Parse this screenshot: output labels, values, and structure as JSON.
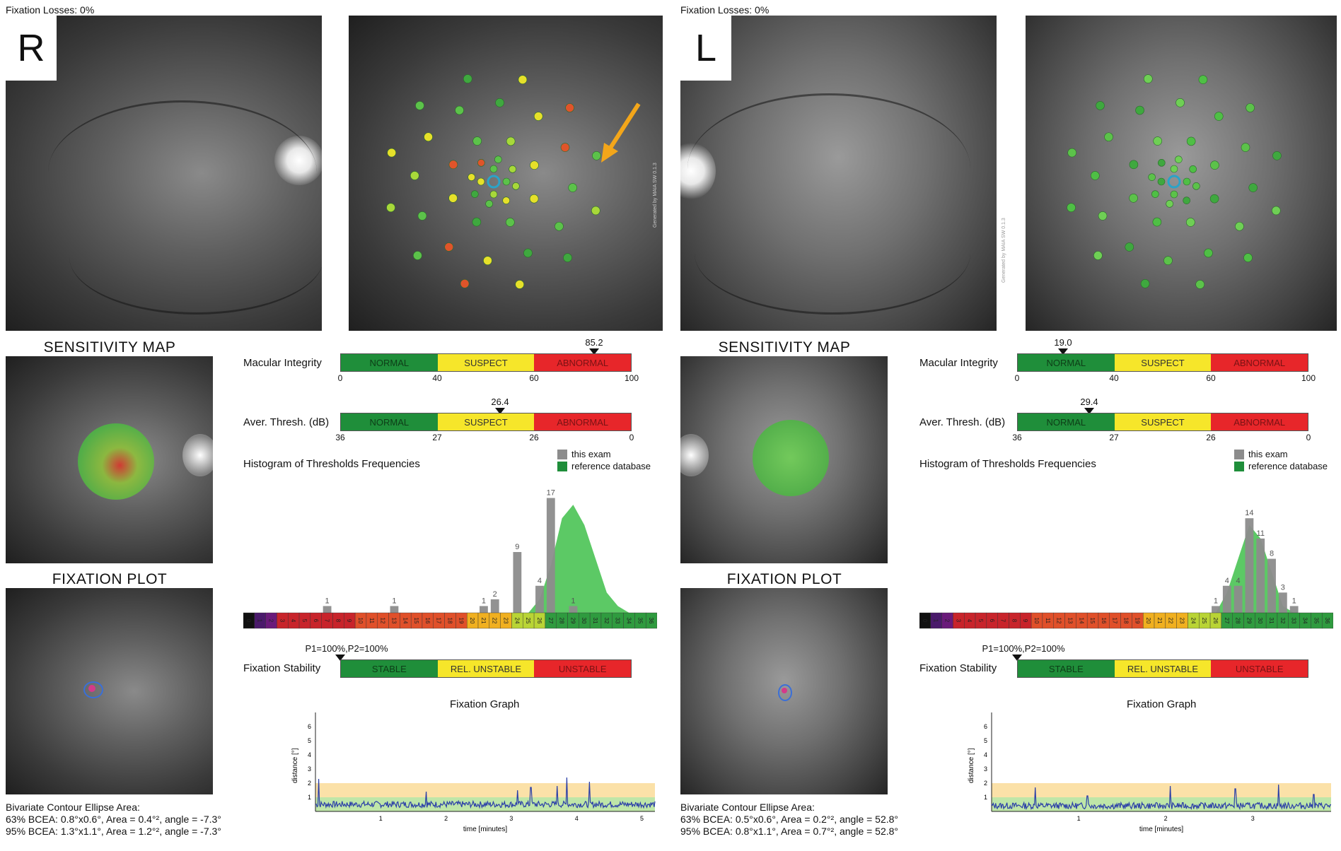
{
  "right": {
    "fixation_losses": "Fixation Losses: 0%",
    "eye_label": "R",
    "watermark": "Generated by MAIA SW 0.1.3",
    "sensitivity_map_title": "SENSITIVITY MAP",
    "fixation_plot_title": "FIXATION PLOT",
    "macular_integrity": {
      "label": "Macular Integrity",
      "value": "85.2",
      "ticks": [
        "0",
        "40",
        "60",
        "100"
      ],
      "segments": [
        "NORMAL",
        "SUSPECT",
        "ABNORMAL"
      ]
    },
    "aver_thresh": {
      "label": "Aver. Thresh. (dB)",
      "value": "26.4",
      "ticks": [
        "36",
        "27",
        "26",
        "0"
      ],
      "segments": [
        "NORMAL",
        "SUSPECT",
        "ABNORMAL"
      ]
    },
    "histogram": {
      "title": "Histogram of Thresholds Frequencies",
      "legend_this": "this exam",
      "legend_ref": "reference database"
    },
    "fixation_stability": {
      "label": "Fixation Stability",
      "value": "P1=100%,P2=100%",
      "segments": [
        "STABLE",
        "REL. UNSTABLE",
        "UNSTABLE"
      ]
    },
    "fixation_graph": {
      "title": "Fixation Graph",
      "ylabel": "distance [°]",
      "xlabel": "time [minutes]",
      "xticks": [
        "1",
        "2",
        "3",
        "4",
        "5"
      ],
      "yticks": [
        "1",
        "2",
        "3",
        "4",
        "5",
        "6"
      ]
    },
    "bcea": {
      "title": "Bivariate Contour Ellipse Area:",
      "line63": "63% BCEA: 0.8°x0.6°, Area = 0.4°², angle = -7.3°",
      "line95": "95% BCEA: 1.3°x1.1°, Area = 1.2°², angle = -7.3°"
    }
  },
  "left": {
    "fixation_losses": "Fixation Losses: 0%",
    "eye_label": "L",
    "watermark": "Generated by MAIA SW 0.1.3",
    "sensitivity_map_title": "SENSITIVITY MAP",
    "fixation_plot_title": "FIXATION PLOT",
    "macular_integrity": {
      "label": "Macular Integrity",
      "value": "19.0",
      "ticks": [
        "0",
        "40",
        "60",
        "100"
      ],
      "segments": [
        "NORMAL",
        "SUSPECT",
        "ABNORMAL"
      ]
    },
    "aver_thresh": {
      "label": "Aver. Thresh. (dB)",
      "value": "29.4",
      "ticks": [
        "36",
        "27",
        "26",
        "0"
      ],
      "segments": [
        "NORMAL",
        "SUSPECT",
        "ABNORMAL"
      ]
    },
    "histogram": {
      "title": "Histogram of Thresholds Frequencies",
      "legend_this": "this exam",
      "legend_ref": "reference database"
    },
    "fixation_stability": {
      "label": "Fixation Stability",
      "value": "P1=100%,P2=100%",
      "segments": [
        "STABLE",
        "REL. UNSTABLE",
        "UNSTABLE"
      ]
    },
    "fixation_graph": {
      "title": "Fixation Graph",
      "ylabel": "distance [°]",
      "xlabel": "time [minutes]",
      "xticks": [
        "1",
        "2",
        "3"
      ],
      "yticks": [
        "1",
        "2",
        "3",
        "4",
        "5",
        "6"
      ]
    },
    "bcea": {
      "title": "Bivariate Contour Ellipse Area:",
      "line63": "63% BCEA: 0.5°x0.6°, Area = 0.2°², angle = 52.8°",
      "line95": "95% BCEA: 0.8°x1.1°, Area = 0.7°², angle = 52.8°"
    }
  },
  "colors": {
    "normal": "#1f8e3a",
    "suspect": "#f6e62a",
    "abnormal": "#e7262a",
    "this_exam": "#8c8c8c",
    "reference": "#2fb34a",
    "arrow": "#f3a61a"
  },
  "chart_data": [
    {
      "type": "bar",
      "eye": "R",
      "title": "Histogram of Thresholds Frequencies",
      "categories": [
        "0",
        "1",
        "2",
        "3",
        "4",
        "5",
        "6",
        "7",
        "8",
        "9",
        "10",
        "11",
        "12",
        "13",
        "14",
        "15",
        "16",
        "17",
        "18",
        "19",
        "20",
        "21",
        "22",
        "23",
        "24",
        "25",
        "26",
        "27",
        "28",
        "29",
        "30",
        "31",
        "32",
        "33",
        "34",
        "35",
        "36"
      ],
      "series": [
        {
          "name": "this exam",
          "values": [
            0,
            0,
            0,
            0,
            0,
            0,
            0,
            1,
            0,
            0,
            0,
            0,
            0,
            1,
            0,
            0,
            0,
            0,
            0,
            0,
            0,
            1,
            2,
            0,
            9,
            0,
            4,
            17,
            0,
            1,
            0,
            0,
            0,
            0,
            0,
            0,
            0
          ]
        },
        {
          "name": "reference database",
          "values": [
            0,
            0,
            0,
            0,
            0,
            0,
            0,
            0,
            0,
            0,
            0,
            0,
            0,
            0,
            0,
            0,
            0,
            0,
            0,
            0,
            0,
            0,
            0,
            0,
            0,
            0,
            2,
            7,
            14,
            16,
            13,
            8,
            3,
            1,
            0,
            0,
            0
          ]
        }
      ],
      "data_labels": [
        "1",
        "1",
        "1",
        "2",
        "9",
        "4",
        "17",
        "1"
      ]
    },
    {
      "type": "bar",
      "eye": "L",
      "title": "Histogram of Thresholds Frequencies",
      "categories": [
        "0",
        "1",
        "2",
        "3",
        "4",
        "5",
        "6",
        "7",
        "8",
        "9",
        "10",
        "11",
        "12",
        "13",
        "14",
        "15",
        "16",
        "17",
        "18",
        "19",
        "20",
        "21",
        "22",
        "23",
        "24",
        "25",
        "26",
        "27",
        "28",
        "29",
        "30",
        "31",
        "32",
        "33",
        "34",
        "35",
        "36"
      ],
      "series": [
        {
          "name": "this exam",
          "values": [
            0,
            0,
            0,
            0,
            0,
            0,
            0,
            0,
            0,
            0,
            0,
            0,
            0,
            0,
            0,
            0,
            0,
            0,
            0,
            0,
            0,
            0,
            0,
            0,
            0,
            0,
            1,
            4,
            4,
            14,
            11,
            8,
            3,
            1,
            0,
            0,
            0
          ]
        },
        {
          "name": "reference database",
          "values": [
            0,
            0,
            0,
            0,
            0,
            0,
            0,
            0,
            0,
            0,
            0,
            0,
            0,
            0,
            0,
            0,
            0,
            0,
            0,
            0,
            0,
            0,
            0,
            0,
            0,
            0,
            0,
            3,
            8,
            13,
            11,
            6,
            1,
            0,
            0,
            0,
            0
          ]
        }
      ],
      "data_labels": [
        "1",
        "4",
        "14",
        "1"
      ]
    },
    {
      "type": "line",
      "eye": "R",
      "title": "Fixation Graph",
      "xlabel": "time [minutes]",
      "ylabel": "distance [°]",
      "xlim": [
        0,
        5.2
      ],
      "ylim": [
        0,
        7
      ],
      "bands": {
        "green": [
          0,
          1
        ],
        "yellow": [
          1,
          2
        ]
      },
      "spikes": [
        [
          0.05,
          2.3
        ],
        [
          1.7,
          1.4
        ],
        [
          3.1,
          1.5
        ],
        [
          3.3,
          1.7
        ],
        [
          3.7,
          1.8
        ],
        [
          3.85,
          2.4
        ],
        [
          4.2,
          2.1
        ]
      ],
      "baseline": 0.5
    },
    {
      "type": "line",
      "eye": "L",
      "title": "Fixation Graph",
      "xlabel": "time [minutes]",
      "ylabel": "distance [°]",
      "xlim": [
        0,
        3.9
      ],
      "ylim": [
        0,
        7
      ],
      "bands": {
        "green": [
          0,
          1
        ],
        "yellow": [
          1,
          2
        ]
      },
      "spikes": [
        [
          0.5,
          1.7
        ],
        [
          1.1,
          1.1
        ],
        [
          2.05,
          1.8
        ],
        [
          2.8,
          1.6
        ],
        [
          3.3,
          1.9
        ],
        [
          3.7,
          1.2
        ]
      ],
      "baseline": 0.4
    }
  ]
}
